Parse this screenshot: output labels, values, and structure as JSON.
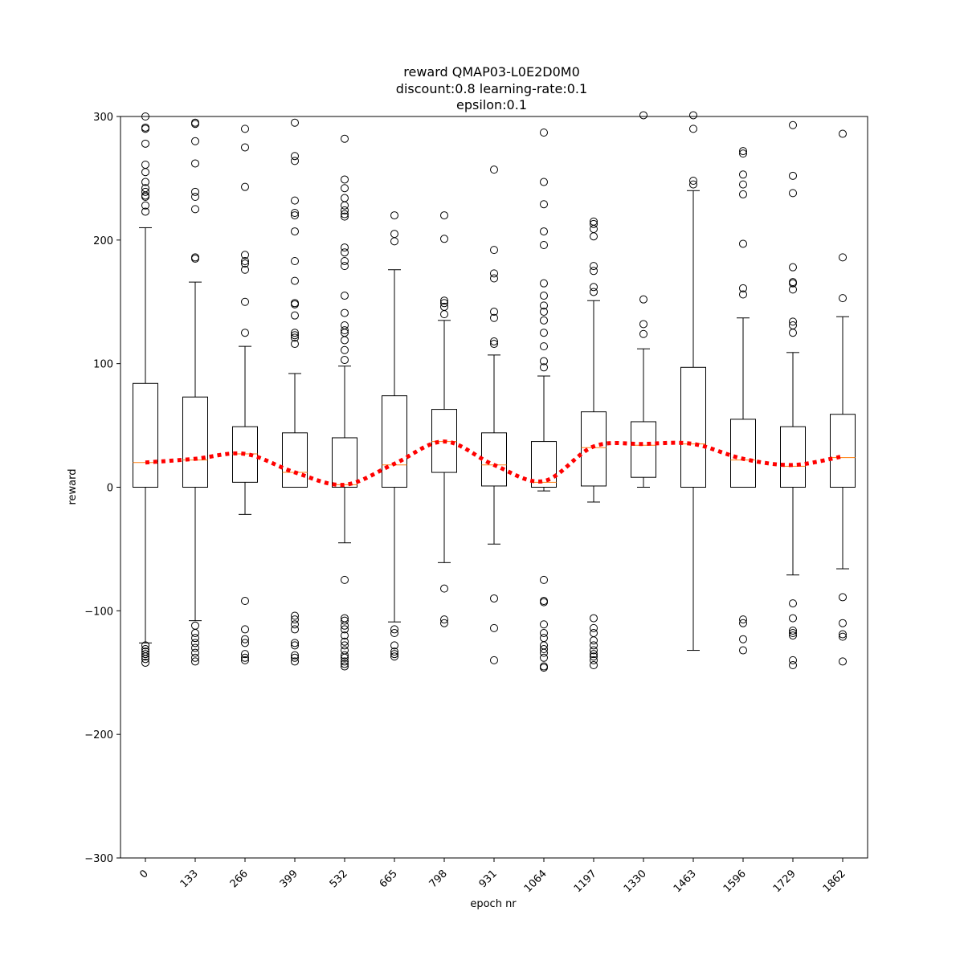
{
  "chart_data": {
    "type": "box",
    "title_lines": [
      "reward QMAP03-L0E2D0M0",
      "discount:0.8 learning-rate:0.1",
      "epsilon:0.1"
    ],
    "xlabel": "epoch nr",
    "ylabel": "reward",
    "ylim": [
      -300,
      300
    ],
    "yticks": [
      -300,
      -200,
      -100,
      0,
      100,
      200,
      300
    ],
    "ytick_labels": [
      "−300",
      "−200",
      "−100",
      "0",
      "100",
      "200",
      "300"
    ],
    "categories": [
      "0",
      "133",
      "266",
      "399",
      "532",
      "665",
      "798",
      "931",
      "1064",
      "1197",
      "1330",
      "1463",
      "1596",
      "1729",
      "1862"
    ],
    "boxes": [
      {
        "q1": 0,
        "median": 20,
        "q3": 84,
        "whisker_low": -126,
        "whisker_high": 210,
        "outliers": [
          300,
          291,
          290,
          278,
          261,
          255,
          247,
          242,
          239,
          236,
          235,
          228,
          223,
          -128,
          -131,
          -133,
          -135,
          -137,
          -139,
          -142
        ]
      },
      {
        "q1": 0,
        "median": 22,
        "q3": 73,
        "whisker_low": -108,
        "whisker_high": 166,
        "outliers": [
          295,
          294,
          280,
          262,
          239,
          235,
          225,
          186,
          185,
          -112,
          -118,
          -122,
          -126,
          -130,
          -134,
          -138,
          -141
        ]
      },
      {
        "q1": 4,
        "median": 27,
        "q3": 49,
        "whisker_low": -22,
        "whisker_high": 114,
        "outliers": [
          290,
          275,
          243,
          188,
          183,
          181,
          176,
          150,
          125,
          -92,
          -115,
          -123,
          -126,
          -135,
          -138,
          -140
        ]
      },
      {
        "q1": 0,
        "median": 12,
        "q3": 44,
        "whisker_low": 0,
        "whisker_high": 92,
        "outliers": [
          295,
          268,
          264,
          232,
          222,
          220,
          207,
          183,
          167,
          149,
          148,
          139,
          125,
          123,
          121,
          116,
          -104,
          -107,
          -111,
          -115,
          -126,
          -128,
          -136,
          -138,
          -141
        ]
      },
      {
        "q1": 0,
        "median": 2,
        "q3": 40,
        "whisker_low": -45,
        "whisker_high": 98,
        "outliers": [
          282,
          249,
          242,
          234,
          228,
          224,
          221,
          219,
          194,
          190,
          183,
          179,
          155,
          141,
          131,
          127,
          125,
          119,
          111,
          103,
          -75,
          -106,
          -108,
          -112,
          -115,
          -120,
          -125,
          -128,
          -132,
          -136,
          -138,
          -141,
          -143,
          -145
        ]
      },
      {
        "q1": 0,
        "median": 18,
        "q3": 74,
        "whisker_low": -109,
        "whisker_high": 176,
        "outliers": [
          220,
          205,
          199,
          -115,
          -118,
          -128,
          -133,
          -135,
          -137
        ]
      },
      {
        "q1": 12,
        "median": 37,
        "q3": 63,
        "whisker_low": -61,
        "whisker_high": 135,
        "outliers": [
          220,
          201,
          151,
          149,
          146,
          140,
          -82,
          -107,
          -110
        ]
      },
      {
        "q1": 1,
        "median": 18,
        "q3": 44,
        "whisker_low": -46,
        "whisker_high": 107,
        "outliers": [
          257,
          192,
          173,
          169,
          142,
          137,
          118,
          116,
          -90,
          -114,
          -140
        ]
      },
      {
        "q1": 0,
        "median": 4,
        "q3": 37,
        "whisker_low": -3,
        "whisker_high": 90,
        "outliers": [
          287,
          247,
          229,
          207,
          196,
          165,
          155,
          147,
          142,
          135,
          125,
          114,
          102,
          97,
          -75,
          -92,
          -93,
          -111,
          -118,
          -122,
          -128,
          -131,
          -134,
          -138,
          -145,
          -146
        ]
      },
      {
        "q1": 1,
        "median": 32,
        "q3": 61,
        "whisker_low": -12,
        "whisker_high": 151,
        "outliers": [
          215,
          213,
          209,
          203,
          179,
          175,
          162,
          158,
          -106,
          -114,
          -118,
          -124,
          -128,
          -132,
          -135,
          -137,
          -140,
          -144
        ]
      },
      {
        "q1": 8,
        "median": 34,
        "q3": 53,
        "whisker_low": 0,
        "whisker_high": 112,
        "outliers": [
          301,
          152,
          132,
          124
        ]
      },
      {
        "q1": 0,
        "median": 35,
        "q3": 97,
        "whisker_low": -132,
        "whisker_high": 240,
        "outliers": [
          301,
          290,
          248,
          245
        ]
      },
      {
        "q1": 0,
        "median": 22,
        "q3": 55,
        "whisker_low": 0,
        "whisker_high": 137,
        "outliers": [
          272,
          270,
          253,
          245,
          237,
          197,
          161,
          156,
          -107,
          -110,
          -123,
          -132
        ]
      },
      {
        "q1": 0,
        "median": 17,
        "q3": 49,
        "whisker_low": -71,
        "whisker_high": 109,
        "outliers": [
          293,
          252,
          238,
          178,
          166,
          165,
          160,
          134,
          131,
          125,
          -94,
          -106,
          -116,
          -118,
          -120,
          -140,
          -144
        ]
      },
      {
        "q1": 0,
        "median": 24,
        "q3": 59,
        "whisker_low": -66,
        "whisker_high": 138,
        "outliers": [
          286,
          186,
          153,
          -89,
          -110,
          -119,
          -121,
          -141
        ]
      }
    ],
    "mean_line": [
      20,
      23,
      27,
      12,
      2,
      19,
      37,
      18,
      5,
      33,
      35,
      35,
      23,
      18,
      25
    ],
    "colors": {
      "box": "#000000",
      "median": "#ff7f0e",
      "trend": "#ff0000",
      "outlier": "#000000"
    }
  }
}
